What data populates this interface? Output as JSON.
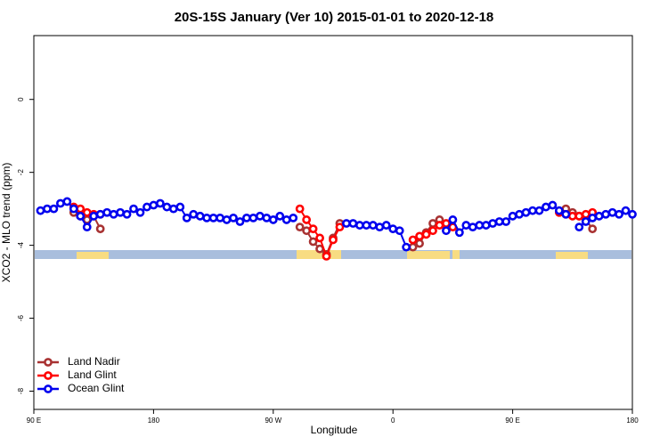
{
  "chart_data": {
    "type": "line",
    "title": "20S-15S January (Ver 10)   2015-01-01 to 2020-12-18",
    "xlabel": "Longitude",
    "ylabel": "XCO2 - MLO trend (ppm)",
    "x": [
      95,
      100,
      105,
      110,
      115,
      120,
      125,
      130,
      135,
      140,
      145,
      150,
      155,
      160,
      165,
      170,
      175,
      180,
      185,
      190,
      195,
      200,
      205,
      210,
      215,
      220,
      225,
      230,
      235,
      240,
      245,
      250,
      255,
      260,
      265,
      270,
      275,
      280,
      285,
      290,
      295,
      300,
      305,
      310,
      315,
      320,
      325,
      330,
      335,
      340,
      345,
      350,
      355,
      360,
      365,
      370,
      375,
      380,
      385,
      390,
      395,
      400,
      405,
      410,
      415,
      420,
      425,
      430,
      435,
      440,
      445,
      450,
      455,
      460,
      465,
      470,
      475,
      480,
      485,
      490,
      495,
      500,
      505,
      510,
      515,
      520,
      525,
      530,
      535,
      540
    ],
    "xlim": [
      90,
      540
    ],
    "xticks": [
      {
        "value": 90,
        "label": "90 E"
      },
      {
        "value": 180,
        "label": "180"
      },
      {
        "value": 270,
        "label": "90 W"
      },
      {
        "value": 360,
        "label": "0"
      },
      {
        "value": 450,
        "label": "90 E"
      },
      {
        "value": 540,
        "label": "180"
      }
    ],
    "ylim": [
      -8.5,
      1.75
    ],
    "yticks": [
      0,
      -2,
      -4,
      -6,
      -8
    ],
    "legend": "bottom-left",
    "series": [
      {
        "name": "Land Nadir",
        "color": "#a83232",
        "values": [
          null,
          null,
          null,
          null,
          null,
          -3.1,
          -3.2,
          -3.3,
          -3.2,
          -3.55,
          null,
          null,
          null,
          null,
          null,
          null,
          null,
          null,
          null,
          null,
          null,
          null,
          null,
          null,
          null,
          null,
          null,
          null,
          null,
          null,
          null,
          null,
          null,
          null,
          null,
          null,
          null,
          null,
          null,
          -3.5,
          -3.6,
          -3.9,
          -4.1,
          -4.25,
          -3.8,
          -3.4,
          null,
          null,
          null,
          null,
          null,
          null,
          null,
          null,
          null,
          null,
          -4.05,
          -3.95,
          -3.65,
          -3.4,
          -3.3,
          -3.5,
          null,
          null,
          null,
          null,
          null,
          null,
          null,
          null,
          null,
          null,
          null,
          null,
          null,
          null,
          null,
          null,
          null,
          -3.0,
          -3.1,
          -3.2,
          -3.3,
          -3.55,
          null,
          null,
          null,
          null,
          null,
          null
        ]
      },
      {
        "name": "Land Glint",
        "color": "#ff0000",
        "values": [
          null,
          null,
          null,
          null,
          null,
          -2.95,
          -3.0,
          -3.1,
          -3.15,
          -3.15,
          null,
          null,
          null,
          null,
          null,
          null,
          null,
          null,
          null,
          null,
          null,
          null,
          null,
          null,
          null,
          null,
          null,
          null,
          null,
          null,
          null,
          null,
          null,
          null,
          null,
          null,
          null,
          null,
          null,
          -3.0,
          -3.3,
          -3.55,
          -3.8,
          -4.3,
          -3.85,
          -3.5,
          null,
          null,
          null,
          null,
          null,
          null,
          null,
          null,
          null,
          null,
          -3.85,
          -3.75,
          -3.7,
          -3.6,
          -3.45,
          -3.4,
          -3.5,
          null,
          null,
          null,
          null,
          null,
          null,
          null,
          null,
          null,
          null,
          null,
          null,
          null,
          null,
          null,
          -3.1,
          -3.15,
          -3.2,
          -3.2,
          -3.15,
          -3.1,
          null,
          null,
          null,
          null,
          null,
          null
        ]
      },
      {
        "name": "Ocean Glint",
        "color": "#0000ee",
        "values": [
          -3.05,
          -3.0,
          -3.0,
          -2.85,
          -2.8,
          -3.0,
          -3.2,
          -3.5,
          -3.2,
          -3.15,
          -3.1,
          -3.15,
          -3.1,
          -3.15,
          -3.0,
          -3.1,
          -2.95,
          -2.9,
          -2.85,
          -2.95,
          -3.0,
          -2.95,
          -3.25,
          -3.15,
          -3.2,
          -3.25,
          -3.25,
          -3.25,
          -3.3,
          -3.25,
          -3.35,
          -3.25,
          -3.25,
          -3.2,
          -3.25,
          -3.3,
          -3.2,
          -3.3,
          -3.25,
          null,
          null,
          null,
          null,
          null,
          null,
          null,
          -3.4,
          -3.4,
          -3.45,
          -3.45,
          -3.45,
          -3.5,
          -3.45,
          -3.55,
          -3.6,
          -4.05,
          null,
          null,
          null,
          null,
          null,
          -3.6,
          -3.3,
          -3.65,
          -3.45,
          -3.5,
          -3.45,
          -3.45,
          -3.4,
          -3.35,
          -3.35,
          -3.2,
          -3.15,
          -3.1,
          -3.05,
          -3.05,
          -2.95,
          -2.9,
          -3.05,
          -3.15,
          null,
          -3.5,
          -3.35,
          -3.25,
          -3.2,
          -3.15,
          -3.1,
          -3.15,
          -3.05,
          -3.15
        ]
      }
    ]
  }
}
